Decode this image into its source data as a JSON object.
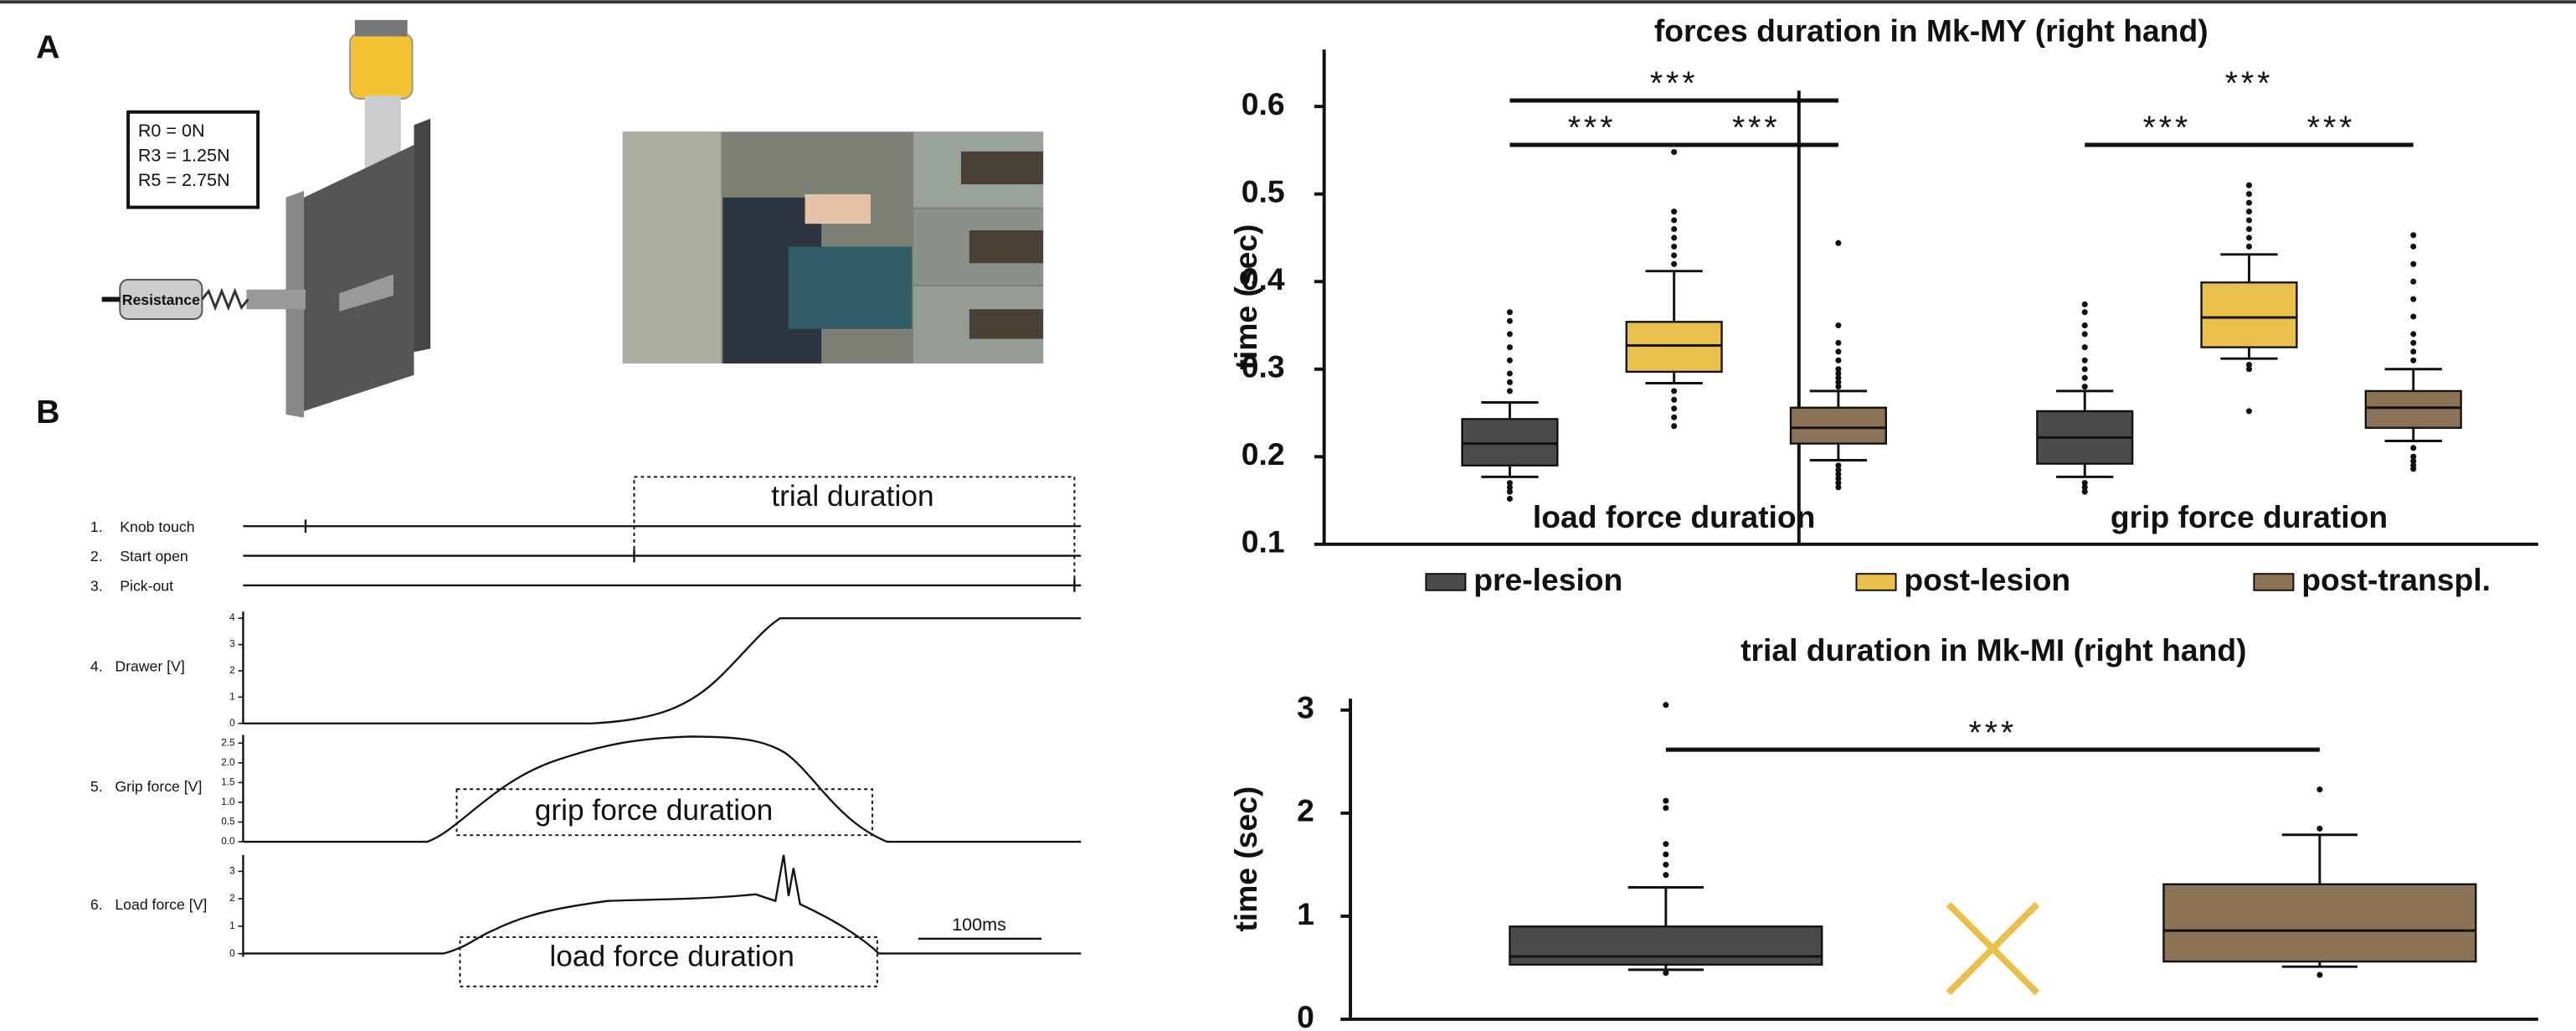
{
  "panel_a": {
    "label": "A",
    "resistance_levels": [
      "R0  =  0N",
      "R3  =  1.25N",
      "R5  =  2.75N"
    ],
    "resistance_label": "Resistance"
  },
  "panel_b": {
    "label": "B",
    "channels": [
      {
        "number": "1.",
        "name": "Knob touch"
      },
      {
        "number": "2.",
        "name": "Start open"
      },
      {
        "number": "3.",
        "name": "Pick-out"
      },
      {
        "number": "4.",
        "name": "Drawer [V]"
      },
      {
        "number": "5.",
        "name": "Grip force [V]"
      },
      {
        "number": "6.",
        "name": "Load force [V]"
      }
    ],
    "drawer_ticks": [
      "4",
      "3",
      "2",
      "1",
      "0"
    ],
    "grip_ticks": [
      "2.5",
      "2.0",
      "1.5",
      "1.0",
      "0.5",
      "0.0"
    ],
    "load_ticks": [
      "3",
      "2",
      "1",
      "0"
    ],
    "annotations": [
      "trial duration",
      "grip force duration",
      "load force duration"
    ],
    "scale_bar": "100ms"
  },
  "chart_data": [
    {
      "type": "box",
      "title": "forces duration in Mk-MY (right hand)",
      "y_label": "time (sec)",
      "groups": [
        "load force duration",
        "grip force duration"
      ],
      "ylim": [
        0.1,
        0.665
      ],
      "yticks": [
        0.1,
        0.2,
        0.3,
        0.4,
        0.5,
        0.6
      ],
      "legend": "bottom",
      "series": [
        {
          "name": "pre-lesion",
          "color": "#4a4a4a",
          "values": [
            {
              "low": 0.177,
              "q1": 0.19,
              "median": 0.215,
              "q3": 0.243,
              "high": 0.262,
              "outliers": [
                0.365,
                0.355,
                0.34,
                0.325,
                0.31,
                0.295,
                0.285,
                0.275,
                0.17,
                0.165,
                0.16,
                0.152
              ]
            },
            {
              "low": 0.177,
              "q1": 0.192,
              "median": 0.222,
              "q3": 0.252,
              "high": 0.275,
              "outliers": [
                0.374,
                0.365,
                0.35,
                0.34,
                0.325,
                0.31,
                0.3,
                0.29,
                0.28,
                0.17,
                0.165,
                0.16
              ]
            }
          ]
        },
        {
          "name": "post-lesion",
          "color": "#e8c04a",
          "values": [
            {
              "low": 0.284,
              "q1": 0.297,
              "median": 0.327,
              "q3": 0.354,
              "high": 0.412,
              "outliers": [
                0.548,
                0.48,
                0.47,
                0.46,
                0.45,
                0.44,
                0.43,
                0.42,
                0.275,
                0.265,
                0.255,
                0.245,
                0.235
              ]
            },
            {
              "low": 0.312,
              "q1": 0.325,
              "median": 0.359,
              "q3": 0.399,
              "high": 0.431,
              "outliers": [
                0.51,
                0.5,
                0.49,
                0.48,
                0.47,
                0.46,
                0.45,
                0.44,
                0.305,
                0.3,
                0.252
              ]
            }
          ]
        },
        {
          "name": "post-transpl.",
          "color": "#8b7355",
          "values": [
            {
              "low": 0.196,
              "q1": 0.215,
              "median": 0.233,
              "q3": 0.256,
              "high": 0.275,
              "outliers": [
                0.444,
                0.35,
                0.33,
                0.32,
                0.31,
                0.3,
                0.295,
                0.29,
                0.285,
                0.28,
                0.19,
                0.185,
                0.18,
                0.175,
                0.17,
                0.165
              ]
            },
            {
              "low": 0.218,
              "q1": 0.233,
              "median": 0.256,
              "q3": 0.275,
              "high": 0.3,
              "outliers": [
                0.453,
                0.44,
                0.42,
                0.4,
                0.38,
                0.36,
                0.34,
                0.33,
                0.32,
                0.31,
                0.21,
                0.2,
                0.195,
                0.19,
                0.186
              ]
            }
          ]
        }
      ],
      "significance": [
        {
          "group": 0,
          "pair": [
            0,
            2
          ],
          "label": "***",
          "line": true
        },
        {
          "group": 0,
          "pair": [
            0,
            1
          ],
          "label": "***",
          "line": true
        },
        {
          "group": 0,
          "pair": [
            1,
            2
          ],
          "label": "***",
          "line": true
        },
        {
          "group": 1,
          "pair": [
            0,
            2
          ],
          "label": "***",
          "line": false
        },
        {
          "group": 1,
          "pair": [
            0,
            1
          ],
          "label": "***",
          "line": true
        },
        {
          "group": 1,
          "pair": [
            1,
            2
          ],
          "label": "***",
          "line": true
        }
      ]
    },
    {
      "type": "box",
      "title": "trial duration in Mk-MI (right hand)",
      "y_label": "time (sec)",
      "ylim": [
        0,
        3.11
      ],
      "yticks": [
        0,
        1,
        2,
        3
      ],
      "series": [
        {
          "color": "#4a4a4a",
          "values": [
            {
              "low": 0.48,
              "q1": 0.53,
              "median": 0.61,
              "q3": 0.9,
              "high": 1.28,
              "outliers": [
                3.05,
                2.12,
                2.05,
                1.7,
                1.6,
                1.5,
                1.4,
                0.45
              ]
            }
          ]
        },
        {
          "color": "#e8c04a",
          "values": [
            null
          ]
        },
        {
          "color": "#8b7355",
          "values": [
            {
              "low": 0.51,
              "q1": 0.56,
              "median": 0.86,
              "q3": 1.31,
              "high": 1.79,
              "outliers": [
                2.23,
                1.85,
                0.43
              ]
            }
          ]
        }
      ],
      "significance": [
        {
          "group": 0,
          "pair": [
            0,
            2
          ],
          "label": "***",
          "line": true
        }
      ]
    }
  ]
}
